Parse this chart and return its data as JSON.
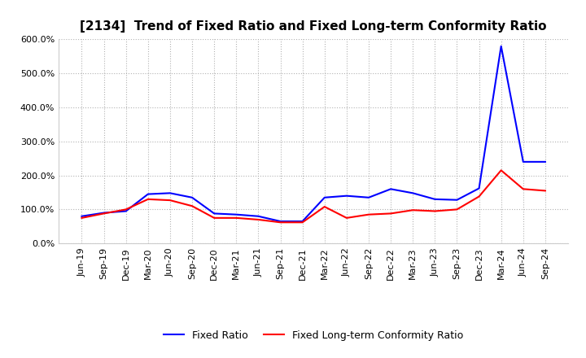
{
  "title": "[2134]  Trend of Fixed Ratio and Fixed Long-term Conformity Ratio",
  "x_labels": [
    "Jun-19",
    "Sep-19",
    "Dec-19",
    "Mar-20",
    "Jun-20",
    "Sep-20",
    "Dec-20",
    "Mar-21",
    "Jun-21",
    "Sep-21",
    "Dec-21",
    "Mar-22",
    "Jun-22",
    "Sep-22",
    "Dec-22",
    "Mar-23",
    "Jun-23",
    "Sep-23",
    "Dec-23",
    "Mar-24",
    "Jun-24",
    "Sep-24"
  ],
  "fixed_ratio": [
    80,
    90,
    95,
    145,
    148,
    135,
    88,
    85,
    80,
    65,
    65,
    135,
    140,
    135,
    160,
    148,
    130,
    128,
    162,
    580,
    240,
    240
  ],
  "fixed_lt_ratio": [
    75,
    88,
    100,
    130,
    127,
    110,
    75,
    75,
    70,
    62,
    62,
    108,
    75,
    85,
    88,
    98,
    95,
    100,
    138,
    215,
    160,
    155
  ],
  "fixed_ratio_color": "#0000FF",
  "fixed_lt_ratio_color": "#FF0000",
  "ylim_min": 0,
  "ylim_max": 600,
  "yticks": [
    0,
    100,
    200,
    300,
    400,
    500,
    600
  ],
  "ytick_labels": [
    "0.0%",
    "100.0%",
    "200.0%",
    "300.0%",
    "400.0%",
    "500.0%",
    "600.0%"
  ],
  "legend_fixed_ratio": "Fixed Ratio",
  "legend_fixed_lt_ratio": "Fixed Long-term Conformity Ratio",
  "plot_bg_color": "#FFFFFF",
  "fig_bg_color": "#FFFFFF",
  "grid_color": "#AAAAAA",
  "line_width": 1.5,
  "title_fontsize": 11,
  "tick_fontsize": 8,
  "legend_fontsize": 9
}
